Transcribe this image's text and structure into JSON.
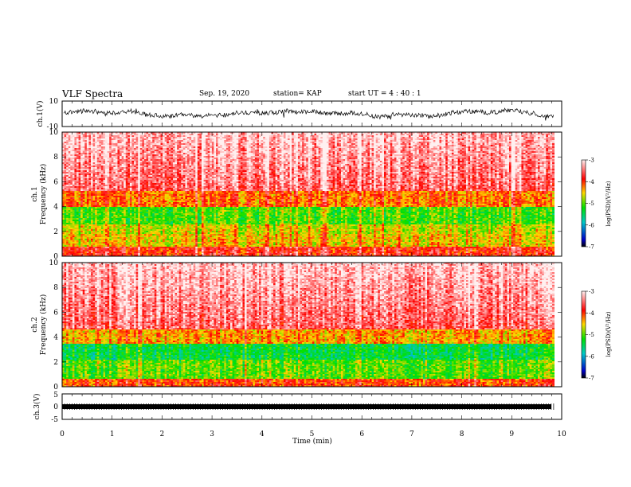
{
  "header": {
    "title": "VLF Spectra",
    "date": "Sep. 19, 2020",
    "station": "station= KAP",
    "start": "start UT =  4 : 40 : 1"
  },
  "chart_data": [
    {
      "type": "line",
      "ylabel": "ch.1(V)",
      "ylim": [
        -10,
        10
      ],
      "yticks": [
        "10",
        "-10"
      ],
      "x_range": [
        0,
        10
      ],
      "data_x_end": 9.85,
      "trace": "noisy waveform, amplitude about -7 to 7 V"
    },
    {
      "type": "heatmap",
      "ylabel": "ch.1 Frequency (kHz)",
      "ylim": [
        0,
        10
      ],
      "yticks": [
        "0",
        "2",
        "4",
        "6",
        "8",
        "10"
      ],
      "x_range": [
        0,
        10
      ],
      "data_x_end": 9.85
    },
    {
      "type": "heatmap",
      "ylabel": "ch.2 Frequency (kHz)",
      "ylim": [
        0,
        10
      ],
      "yticks": [
        "0",
        "2",
        "4",
        "6",
        "8",
        "10"
      ],
      "x_range": [
        0,
        10
      ],
      "data_x_end": 9.85
    },
    {
      "type": "line",
      "ylabel": "ch.3(V)",
      "ylim": [
        -5,
        5
      ],
      "yticks": [
        "5",
        "0",
        "-5"
      ],
      "x_range": [
        0,
        10
      ],
      "data_x_end": 9.85,
      "trace": "dense square signal near -0.5 V"
    }
  ],
  "xaxis": {
    "label": "Time (min)",
    "ticks": [
      "0",
      "1",
      "2",
      "3",
      "4",
      "5",
      "6",
      "7",
      "8",
      "9",
      "10"
    ]
  },
  "colorbar": {
    "label": "log(PSD)(V²/Hz)",
    "ticks": [
      "-3",
      "-4",
      "-5",
      "-6",
      "-7"
    ],
    "range": [
      -7,
      -3
    ]
  },
  "colors": {
    "high": "#ff0000",
    "mid_high": "#ffd800",
    "mid": "#00e000",
    "mid_low": "#00c8c8",
    "low": "#0000c8",
    "lowest": "#000000",
    "saturated": "#fff0f0"
  }
}
